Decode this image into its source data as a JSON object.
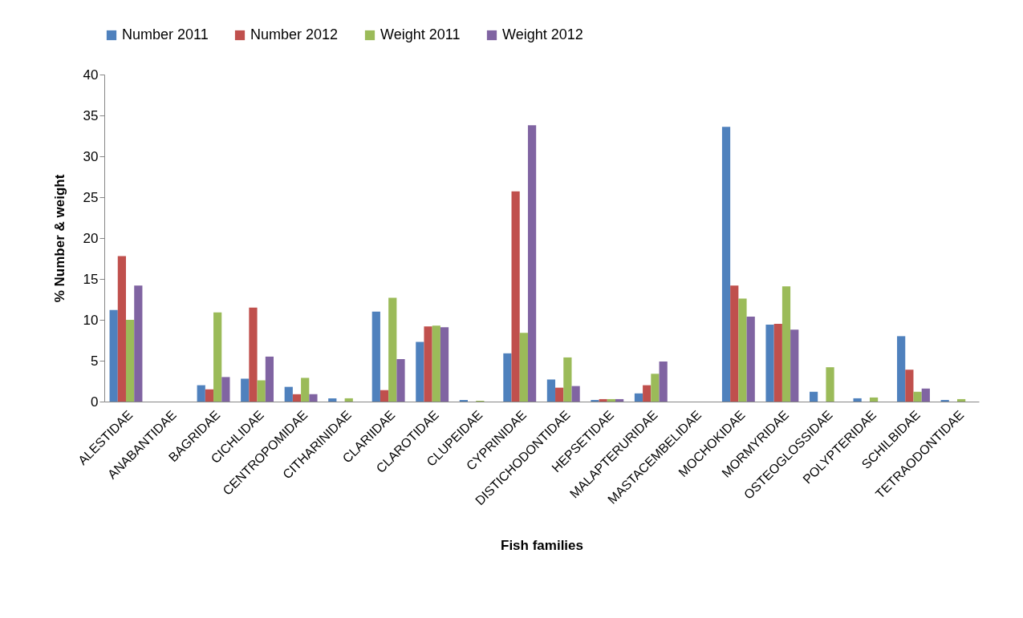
{
  "chart_data": {
    "type": "bar",
    "xlabel": "Fish families",
    "ylabel": "% Number & weight",
    "categories": [
      "ALESTIDAE",
      "ANABANTIDAE",
      "BAGRIDAE",
      "CICHLIDAE",
      "CENTROPOMIDAE",
      "CITHARINIDAE",
      "CLARIIDAE",
      "CLAROTIDAE",
      "CLUPEIDAE",
      "CYPRINIDAE",
      "DISTICHODONTIDAE",
      "HEPSETIDAE",
      "MALAPTERURIDAE",
      "MASTACEMBELIDAE",
      "MOCHOKIDAE",
      "MORMYRIDAE",
      "OSTEOGLOSSIDAE",
      "POLYPTERIDAE",
      "SCHILBIDAE",
      "TETRAODONTIDAE"
    ],
    "series": [
      {
        "name": "Number 2011",
        "color": "#4f81bd",
        "values": [
          11.2,
          null,
          2.0,
          2.8,
          1.8,
          0.4,
          11.0,
          7.3,
          0.2,
          5.9,
          2.7,
          0.2,
          1.0,
          null,
          33.6,
          9.4,
          1.2,
          0.4,
          8.0,
          0.2
        ]
      },
      {
        "name": "Number 2012",
        "color": "#c0504d",
        "values": [
          17.8,
          null,
          1.5,
          11.5,
          0.9,
          null,
          1.4,
          9.2,
          null,
          25.7,
          1.7,
          0.3,
          2.0,
          null,
          14.2,
          9.5,
          null,
          null,
          3.9,
          null
        ]
      },
      {
        "name": "Weight 2011",
        "color": "#9bbb59",
        "values": [
          10.0,
          null,
          10.9,
          2.6,
          2.9,
          0.4,
          12.7,
          9.3,
          0.1,
          8.4,
          5.4,
          0.3,
          3.4,
          null,
          12.6,
          14.1,
          4.2,
          0.5,
          1.2,
          0.3
        ]
      },
      {
        "name": "Weight 2012",
        "color": "#8064a2",
        "values": [
          14.2,
          null,
          3.0,
          5.5,
          0.9,
          null,
          5.2,
          9.1,
          null,
          33.8,
          1.9,
          0.3,
          4.9,
          null,
          10.4,
          8.8,
          null,
          null,
          1.6,
          null
        ]
      }
    ],
    "ylim": [
      0,
      40
    ],
    "yticks": [
      0,
      5,
      10,
      15,
      20,
      25,
      30,
      35,
      40
    ],
    "grid": false,
    "legend": "top"
  }
}
